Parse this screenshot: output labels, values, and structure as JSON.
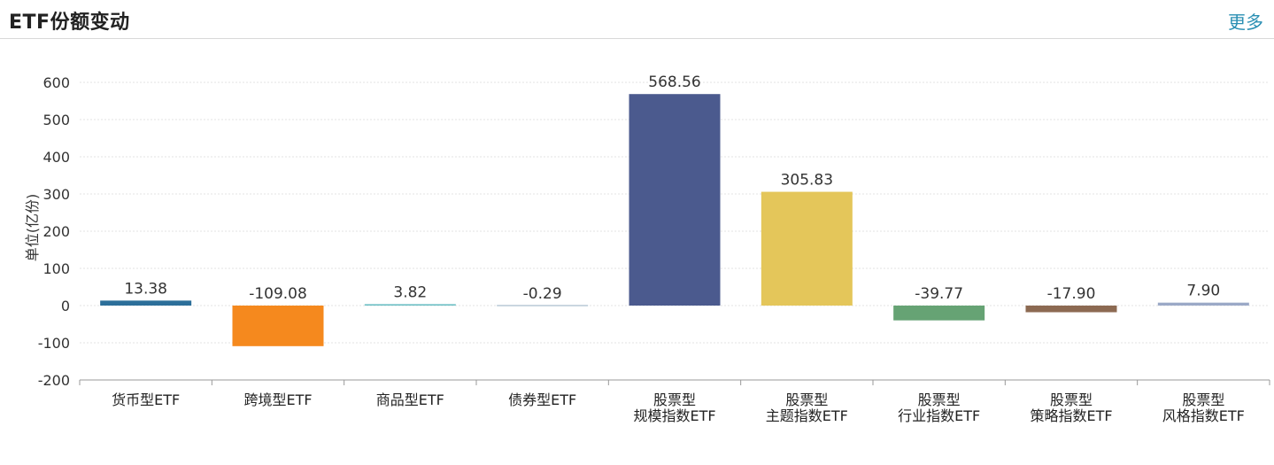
{
  "header": {
    "title": "ETF份额变动",
    "more_label": "更多"
  },
  "chart_data": {
    "type": "bar",
    "ylabel": "单位(亿份)",
    "ylim": [
      -200,
      600
    ],
    "yticks": [
      600,
      500,
      400,
      300,
      200,
      100,
      0,
      -100,
      -200
    ],
    "grid": true,
    "categories": [
      [
        "货币型ETF"
      ],
      [
        "跨境型ETF"
      ],
      [
        "商品型ETF"
      ],
      [
        "债券型ETF"
      ],
      [
        "股票型",
        "规模指数ETF"
      ],
      [
        "股票型",
        "主题指数ETF"
      ],
      [
        "股票型",
        "行业指数ETF"
      ],
      [
        "股票型",
        "策略指数ETF"
      ],
      [
        "股票型",
        "风格指数ETF"
      ]
    ],
    "values": [
      13.38,
      -109.08,
      3.82,
      -0.29,
      568.56,
      305.83,
      -39.77,
      -17.9,
      7.9
    ],
    "value_labels": [
      "13.38",
      "-109.08",
      "3.82",
      "-0.29",
      "568.56",
      "305.83",
      "-39.77",
      "-17.90",
      "7.90"
    ],
    "colors": [
      "#2c6f9a",
      "#f5891e",
      "#6dbfc4",
      "#b8c9d6",
      "#4b5a8e",
      "#e4c65a",
      "#66a374",
      "#8c6a52",
      "#9ba9c7"
    ]
  }
}
